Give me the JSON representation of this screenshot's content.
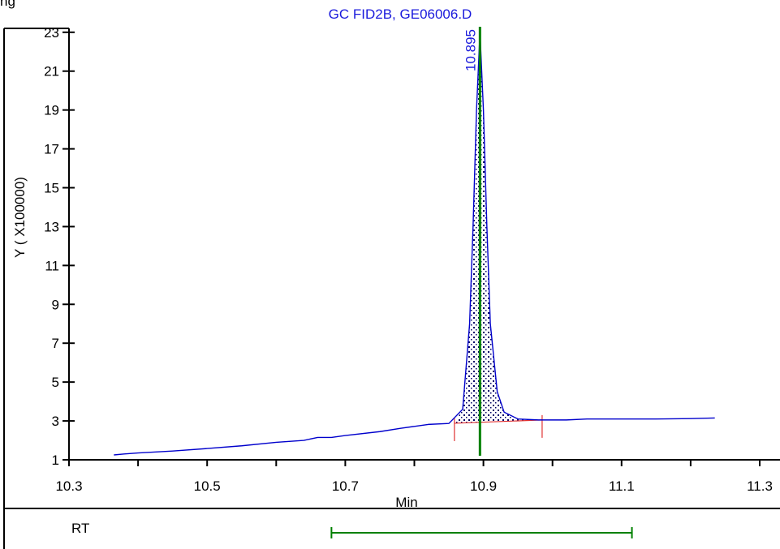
{
  "header_fragment": "ng",
  "colors": {
    "title": "#1a1adc",
    "trace": "#0000cc",
    "peak_fill": "#000066",
    "baseline": "#e03030",
    "marker": "#008000",
    "axis": "#000000"
  },
  "chart_data": {
    "type": "line",
    "title": "GC FID2B, GE06006.D",
    "xlabel": "Min",
    "ylabel": "Y ( X100000)",
    "xlim": [
      10.3,
      11.3
    ],
    "ylim": [
      1,
      23.2
    ],
    "x_ticks": [
      "10.3",
      "10.5",
      "10.7",
      "10.9",
      "11.1",
      "11.3"
    ],
    "y_ticks": [
      "1",
      "3",
      "5",
      "7",
      "9",
      "11",
      "13",
      "15",
      "17",
      "19",
      "21",
      "23"
    ],
    "series": [
      {
        "x": [
          10.365,
          10.38,
          10.4,
          10.45,
          10.5,
          10.55,
          10.6,
          10.64,
          10.66,
          10.68,
          10.7,
          10.75,
          10.78,
          10.8,
          10.82,
          10.85,
          10.87,
          10.88,
          10.885,
          10.89,
          10.895,
          10.9,
          10.905,
          10.91,
          10.92,
          10.93,
          10.95,
          10.98,
          11.0,
          11.02,
          11.05,
          11.1,
          11.15,
          11.2,
          11.235
        ],
        "y": [
          1.25,
          1.3,
          1.35,
          1.45,
          1.58,
          1.72,
          1.9,
          2.0,
          2.15,
          2.15,
          2.25,
          2.45,
          2.62,
          2.72,
          2.82,
          2.87,
          3.6,
          8.0,
          13.0,
          19.0,
          23.0,
          19.0,
          13.0,
          8.0,
          4.5,
          3.45,
          3.1,
          3.05,
          3.05,
          3.05,
          3.1,
          3.1,
          3.1,
          3.12,
          3.15
        ]
      }
    ],
    "peaks": [
      {
        "rt": 10.895,
        "label": "10.895",
        "apex": 23.0,
        "integration_start": 10.858,
        "integration_end": 10.985,
        "baseline_start_y": 2.88,
        "baseline_end_y": 3.05
      }
    ],
    "rt_window": {
      "label": "RT",
      "start": 10.68,
      "end": 11.115
    }
  }
}
